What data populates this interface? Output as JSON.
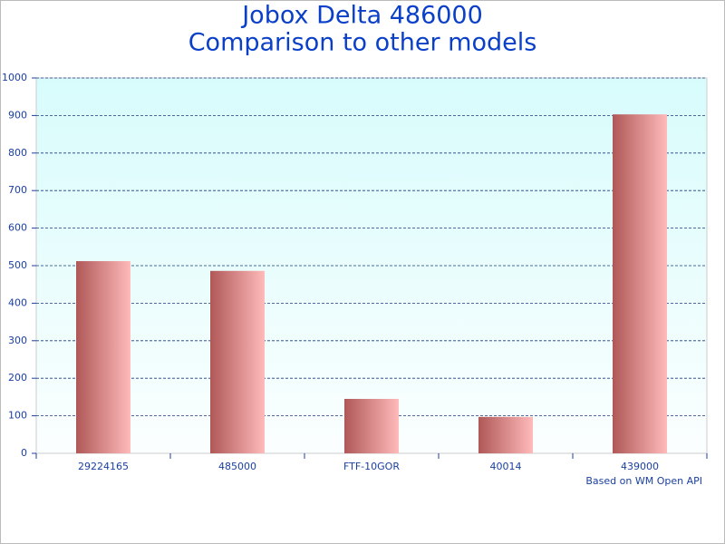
{
  "chart_data": {
    "type": "bar",
    "title": [
      "Jobox Delta 486000",
      "Comparison to other models"
    ],
    "footnote": "Based on WM Open API",
    "categories": [
      "29224165",
      "485000",
      "FTF-10GOR",
      "40014",
      "439000"
    ],
    "values": [
      512,
      486,
      145,
      97,
      903
    ],
    "color": [
      "#b05858",
      "#ffbaba"
    ],
    "ylim": [
      0,
      1000
    ],
    "yticks": [
      0,
      100,
      200,
      300,
      400,
      500,
      600,
      700,
      800,
      900,
      1000
    ],
    "grid": true
  }
}
